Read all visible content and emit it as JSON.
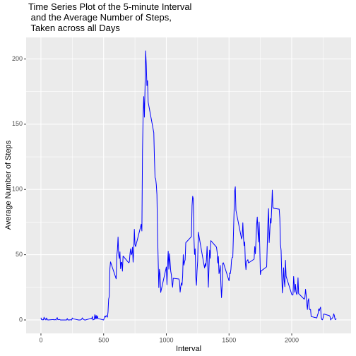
{
  "chart_data": {
    "type": "line",
    "title": "Time Series Plot of the 5-minute Interval\n and the Average Number of Steps,\n Taken across all Days",
    "x_label": "Interval",
    "y_label": "Average Number of Steps",
    "x": [
      0,
      5,
      10,
      15,
      20,
      25,
      30,
      35,
      40,
      45,
      50,
      55,
      100,
      105,
      110,
      115,
      120,
      125,
      130,
      135,
      140,
      145,
      150,
      155,
      200,
      205,
      210,
      215,
      220,
      225,
      230,
      235,
      240,
      245,
      250,
      255,
      300,
      305,
      310,
      315,
      320,
      325,
      330,
      335,
      340,
      345,
      350,
      355,
      400,
      405,
      410,
      415,
      420,
      425,
      430,
      435,
      440,
      445,
      450,
      455,
      500,
      505,
      510,
      515,
      520,
      525,
      530,
      535,
      540,
      545,
      550,
      555,
      600,
      605,
      610,
      615,
      620,
      625,
      630,
      635,
      640,
      645,
      650,
      655,
      700,
      705,
      710,
      715,
      720,
      725,
      730,
      735,
      740,
      745,
      750,
      755,
      800,
      805,
      810,
      815,
      820,
      825,
      830,
      835,
      840,
      845,
      850,
      855,
      900,
      905,
      910,
      915,
      920,
      925,
      930,
      935,
      940,
      945,
      950,
      955,
      1000,
      1005,
      1010,
      1015,
      1020,
      1025,
      1030,
      1035,
      1040,
      1045,
      1050,
      1055,
      1100,
      1105,
      1110,
      1115,
      1120,
      1125,
      1130,
      1135,
      1140,
      1145,
      1150,
      1155,
      1200,
      1205,
      1210,
      1215,
      1220,
      1225,
      1230,
      1235,
      1240,
      1245,
      1250,
      1255,
      1300,
      1305,
      1310,
      1315,
      1320,
      1325,
      1330,
      1335,
      1340,
      1345,
      1350,
      1355,
      1400,
      1405,
      1410,
      1415,
      1420,
      1425,
      1430,
      1435,
      1440,
      1445,
      1450,
      1455,
      1500,
      1505,
      1510,
      1515,
      1520,
      1525,
      1530,
      1535,
      1540,
      1545,
      1550,
      1555,
      1600,
      1605,
      1610,
      1615,
      1620,
      1625,
      1630,
      1635,
      1640,
      1645,
      1650,
      1655,
      1700,
      1705,
      1710,
      1715,
      1720,
      1725,
      1730,
      1735,
      1740,
      1745,
      1750,
      1755,
      1800,
      1805,
      1810,
      1815,
      1820,
      1825,
      1830,
      1835,
      1840,
      1845,
      1850,
      1855,
      1900,
      1905,
      1910,
      1915,
      1920,
      1925,
      1930,
      1935,
      1940,
      1945,
      1950,
      1955,
      2000,
      2005,
      2010,
      2015,
      2020,
      2025,
      2030,
      2035,
      2040,
      2045,
      2050,
      2055,
      2100,
      2105,
      2110,
      2115,
      2120,
      2125,
      2130,
      2135,
      2140,
      2145,
      2150,
      2155,
      2200,
      2205,
      2210,
      2215,
      2220,
      2225,
      2230,
      2235,
      2240,
      2245,
      2250,
      2255,
      2300,
      2305,
      2310,
      2315,
      2320,
      2325,
      2330,
      2335,
      2340,
      2345,
      2350,
      2355
    ],
    "series": [
      {
        "name": "steps",
        "color": "#0000FF",
        "values": [
          1.7,
          0.3,
          0.1,
          0.2,
          0.1,
          2.1,
          0.5,
          0.9,
          0,
          1.5,
          0.4,
          0,
          0.3,
          0,
          0.2,
          0.3,
          0,
          1.1,
          1.8,
          0.2,
          0.2,
          0.4,
          0.3,
          0,
          0,
          0,
          1.1,
          0,
          0,
          0.1,
          0,
          0.2,
          0,
          0,
          1.5,
          0.9,
          0,
          0,
          0,
          0,
          0.2,
          0.6,
          1.6,
          0.6,
          0.5,
          0.1,
          0,
          0,
          1.2,
          0.9,
          2.6,
          0,
          0.3,
          0.4,
          4.1,
          0.7,
          3.5,
          0.8,
          3.1,
          1.1,
          0,
          1.6,
          3,
          2.2,
          3.3,
          3,
          2.1,
          6.1,
          16,
          18,
          39.5,
          44.5,
          31.5,
          49.3,
          53.8,
          63.5,
          50,
          47.1,
          52.2,
          39.3,
          44,
          44.2,
          37.4,
          49,
          43.8,
          44.4,
          50.5,
          54.5,
          49.9,
          51,
          55.7,
          44.3,
          52.3,
          69.5,
          57.8,
          56.2,
          73.4,
          68.2,
          129.4,
          157.5,
          171.2,
          155.4,
          177.3,
          206.2,
          195.9,
          179.6,
          183.4,
          167,
          143.5,
          124,
          109.1,
          108.1,
          103.7,
          96,
          66.2,
          45.2,
          24.8,
          38.8,
          35,
          21.1,
          40.6,
          27,
          42.4,
          52.7,
          38.9,
          50.8,
          44.3,
          37.4,
          34.7,
          28.3,
          25.1,
          31.9,
          31.4,
          29.7,
          21.3,
          25.5,
          28.4,
          26.5,
          33.4,
          50,
          42,
          44.6,
          46,
          59.2,
          63.9,
          87.7,
          94.8,
          92.8,
          63.4,
          50.2,
          54.5,
          32.4,
          26.5,
          37.7,
          45.1,
          67.3,
          42.3,
          39.9,
          43.3,
          41,
          46.2,
          56.4,
          42.8,
          25.1,
          40,
          53.5,
          47.3,
          60.8,
          55.8,
          52,
          43.6,
          48.7,
          35.5,
          37.5,
          41.8,
          27.5,
          17.1,
          26.1,
          43.6,
          43.8,
          30,
          36.1,
          35.5,
          38.8,
          46,
          47.8,
          48.1,
          65.3,
          82.9,
          98.7,
          102.1,
          84,
          62.1,
          64.1,
          74.5,
          63.2,
          56.9,
          59.8,
          43.9,
          38.6,
          44.7,
          45.5,
          46.2,
          43.7,
          46.6,
          56.3,
          50.7,
          61.2,
          72.7,
          78.9,
          68.9,
          59.7,
          75.1,
          56.5,
          34.8,
          37.5,
          40.7,
          58,
          74.7,
          85.3,
          59.3,
          67.8,
          77.7,
          74.2,
          85.3,
          99.5,
          86.6,
          85.6,
          84.9,
          77.8,
          58,
          53.4,
          36.3,
          20.7,
          27.4,
          40,
          30.2,
          25.5,
          45.7,
          33.5,
          19.6,
          19,
          19.3,
          33.3,
          26.8,
          21.2,
          27.3,
          21.3,
          19.5,
          21.3,
          32.3,
          20.2,
          15.9,
          17.2,
          23.5,
          19.2,
          12.5,
          8,
          14.7,
          16.3,
          8.7,
          7.8,
          8.1,
          2.6,
          1.5,
          3.7,
          4.8,
          8.5,
          7.1,
          8.7,
          9.8,
          2.2,
          0.3,
          0.1,
          1.6,
          4.6,
          3.3,
          2.8,
          0,
          0.8,
          1,
          1.6,
          2.6,
          4.7,
          3.3,
          0.6,
          0.2,
          1.1
        ]
      }
    ],
    "xlim": [
      -118,
      2473
    ],
    "xticks": [
      0,
      500,
      1000,
      1500,
      2000
    ],
    "ylim": [
      -10.3,
      216.5
    ],
    "yticks": [
      0,
      50,
      100,
      150,
      200
    ],
    "grid": true
  }
}
